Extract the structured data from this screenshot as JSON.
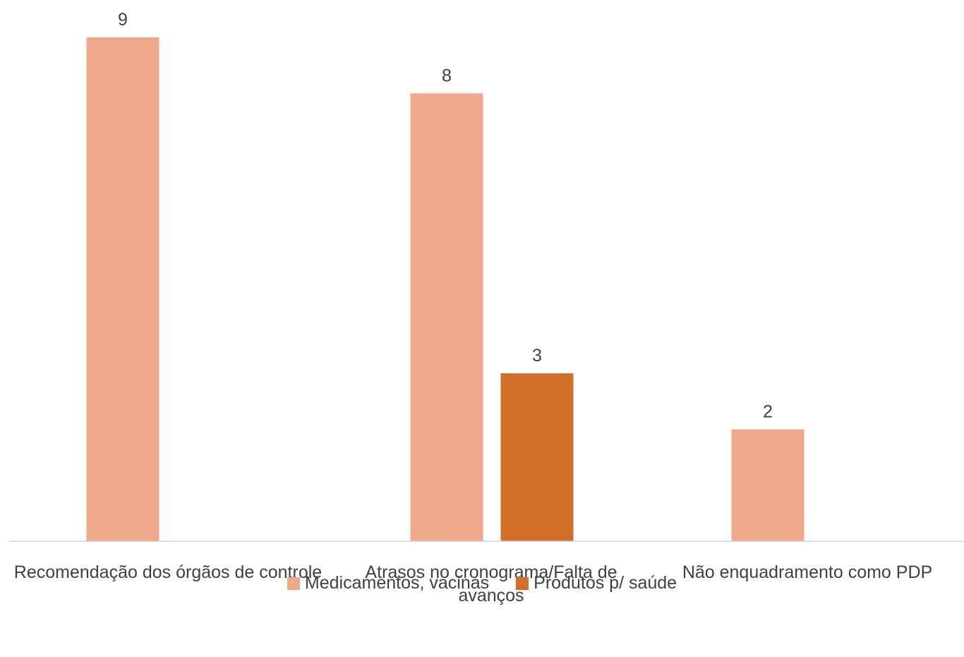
{
  "chart_data": {
    "type": "bar",
    "categories": [
      "Recomendação dos órgãos de controle",
      "Atrasos no cronograma/Falta de avanços",
      "Não enquadramento como PDP"
    ],
    "series": [
      {
        "name": "Medicamentos, vacinas",
        "values": [
          9,
          8,
          2
        ],
        "color": "#F0A88A"
      },
      {
        "name": "Produtos p/ saúde",
        "values": [
          null,
          3,
          null
        ],
        "color": "#D2702A"
      }
    ],
    "ylim": [
      0,
      9
    ],
    "grid": false,
    "legend": "bottom"
  }
}
